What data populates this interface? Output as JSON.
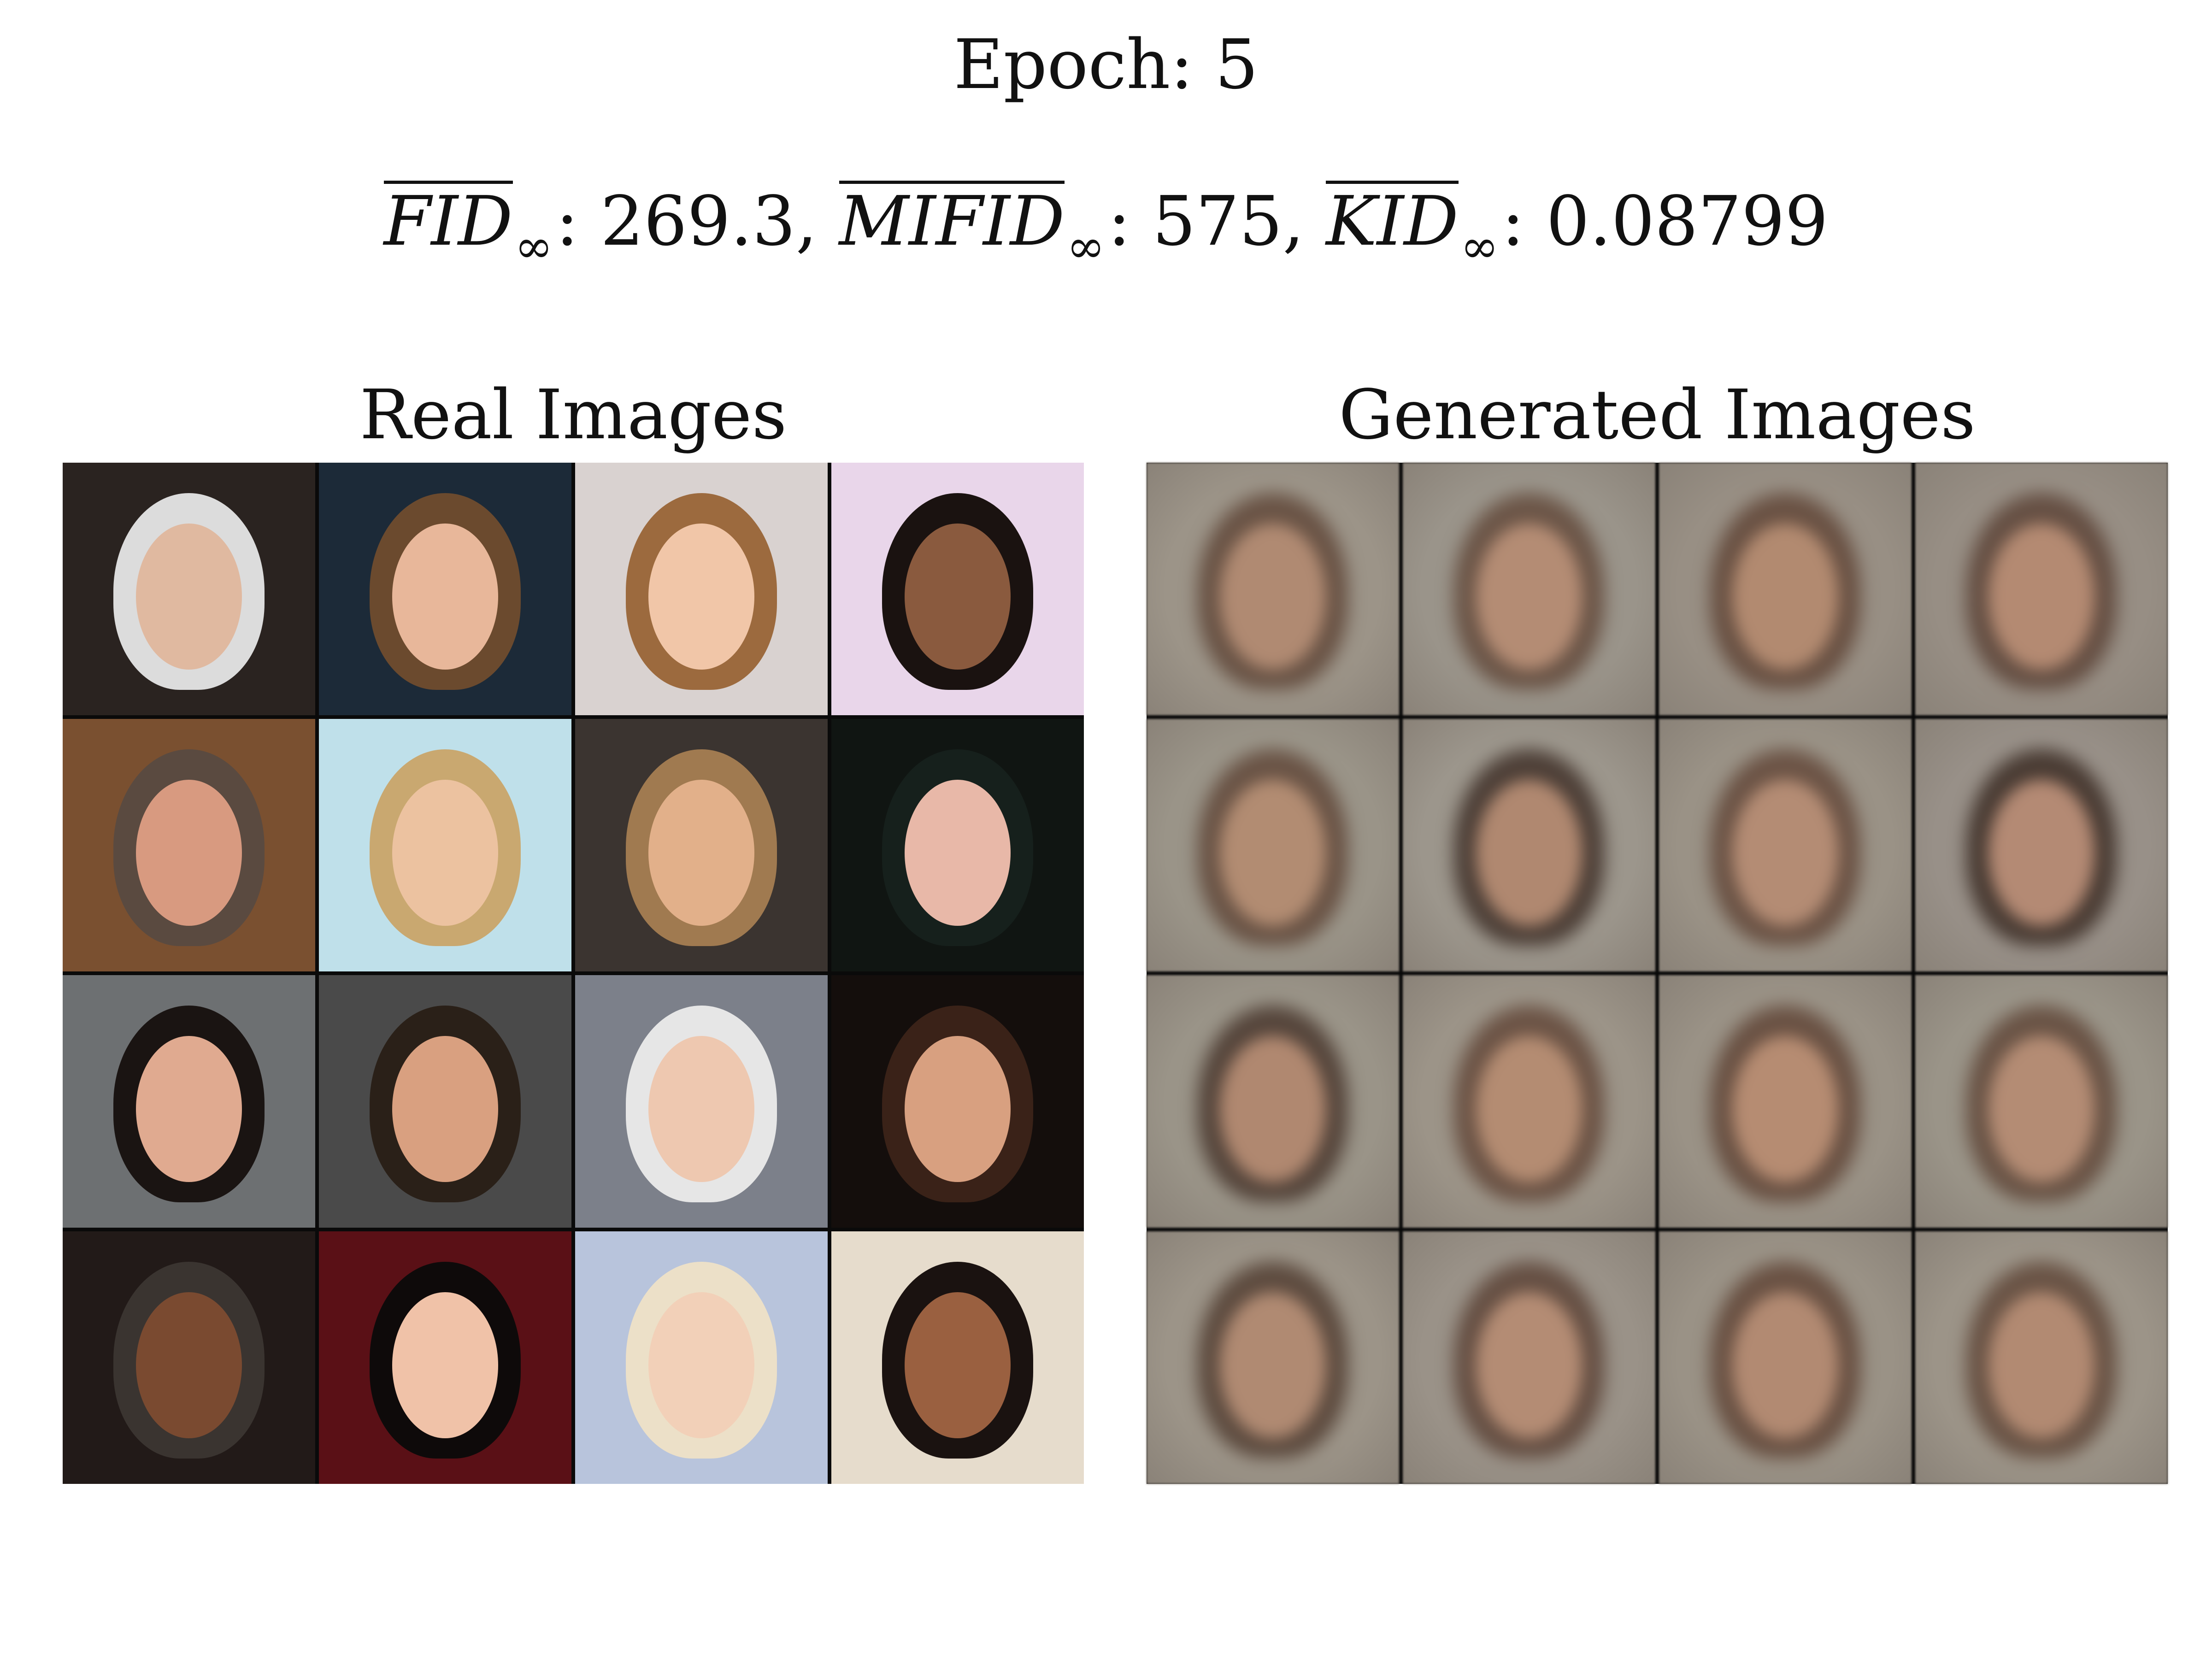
{
  "header": {
    "epoch_label": "Epoch:",
    "epoch_value": "5"
  },
  "metrics": {
    "fid": {
      "name": "FID",
      "sub": "∞",
      "value": "269.3",
      "sep": ","
    },
    "mifid": {
      "name": "MIFID",
      "sub": "∞",
      "value": "575",
      "sep": ","
    },
    "kid": {
      "name": "KID",
      "sub": "∞",
      "value": "0.08799",
      "sep": ""
    }
  },
  "panels": {
    "real": {
      "title": "Real Images",
      "tiles": [
        {
          "bg": "#2a2320",
          "face": "#e0b9a0",
          "hair": "#dcdcdc"
        },
        {
          "bg": "#1c2a38",
          "face": "#e8b79a",
          "hair": "#6b4a2e"
        },
        {
          "bg": "#d9d2d0",
          "face": "#f1c6a8",
          "hair": "#9c6a3e"
        },
        {
          "bg": "#e9d6ea",
          "face": "#8a5a3e",
          "hair": "#1a1210"
        },
        {
          "bg": "#7a5030",
          "face": "#d89a80",
          "hair": "#5a4a40"
        },
        {
          "bg": "#bfe0ea",
          "face": "#ecc2a0",
          "hair": "#c9a870"
        },
        {
          "bg": "#3b3430",
          "face": "#e2b08a",
          "hair": "#a07a50"
        },
        {
          "bg": "#101512",
          "face": "#e8b8a8",
          "hair": "#16201c"
        },
        {
          "bg": "#6d7072",
          "face": "#e0aa90",
          "hair": "#1a1412"
        },
        {
          "bg": "#4a4a4a",
          "face": "#d9a080",
          "hair": "#2a2018"
        },
        {
          "bg": "#7c808a",
          "face": "#eec8b0",
          "hair": "#e6e6e6"
        },
        {
          "bg": "#140e0c",
          "face": "#d8a080",
          "hair": "#3a2218"
        },
        {
          "bg": "#221a18",
          "face": "#7a4a30",
          "hair": "#3a3430"
        },
        {
          "bg": "#5a1016",
          "face": "#f0c2a8",
          "hair": "#0e0a0a"
        },
        {
          "bg": "#b8c4dc",
          "face": "#f2d0b8",
          "hair": "#ece0c8"
        },
        {
          "bg": "#e6dccc",
          "face": "#9a6040",
          "hair": "#1a1210"
        }
      ]
    },
    "generated": {
      "title": "Generated Images",
      "tiles": [
        {
          "bg": "#9c9488",
          "face": "#b08a72",
          "hair": "#6a5446"
        },
        {
          "bg": "#9a948a",
          "face": "#b48c74",
          "hair": "#6c5648"
        },
        {
          "bg": "#988f84",
          "face": "#b28a70",
          "hair": "#6a5244"
        },
        {
          "bg": "#978e84",
          "face": "#b48a72",
          "hair": "#665044"
        },
        {
          "bg": "#9a9488",
          "face": "#b28c72",
          "hair": "#6a5446"
        },
        {
          "bg": "#9c968c",
          "face": "#b08870",
          "hair": "#4e4038"
        },
        {
          "bg": "#9a9286",
          "face": "#b48c74",
          "hair": "#6c5446"
        },
        {
          "bg": "#989088",
          "face": "#b48a74",
          "hair": "#4a3c34"
        },
        {
          "bg": "#9a9488",
          "face": "#b08870",
          "hair": "#56463c"
        },
        {
          "bg": "#9c9488",
          "face": "#b48c72",
          "hair": "#6c5446"
        },
        {
          "bg": "#9a9286",
          "face": "#b68c72",
          "hair": "#6a5244"
        },
        {
          "bg": "#9a9488",
          "face": "#b48c74",
          "hair": "#6a5446"
        },
        {
          "bg": "#9c9488",
          "face": "#b08a72",
          "hair": "#5e4c40"
        },
        {
          "bg": "#9a9288",
          "face": "#b48c74",
          "hair": "#665044"
        },
        {
          "bg": "#9a9286",
          "face": "#b28a72",
          "hair": "#6a5244"
        },
        {
          "bg": "#9c9488",
          "face": "#b28a72",
          "hair": "#6a5446"
        }
      ]
    }
  }
}
